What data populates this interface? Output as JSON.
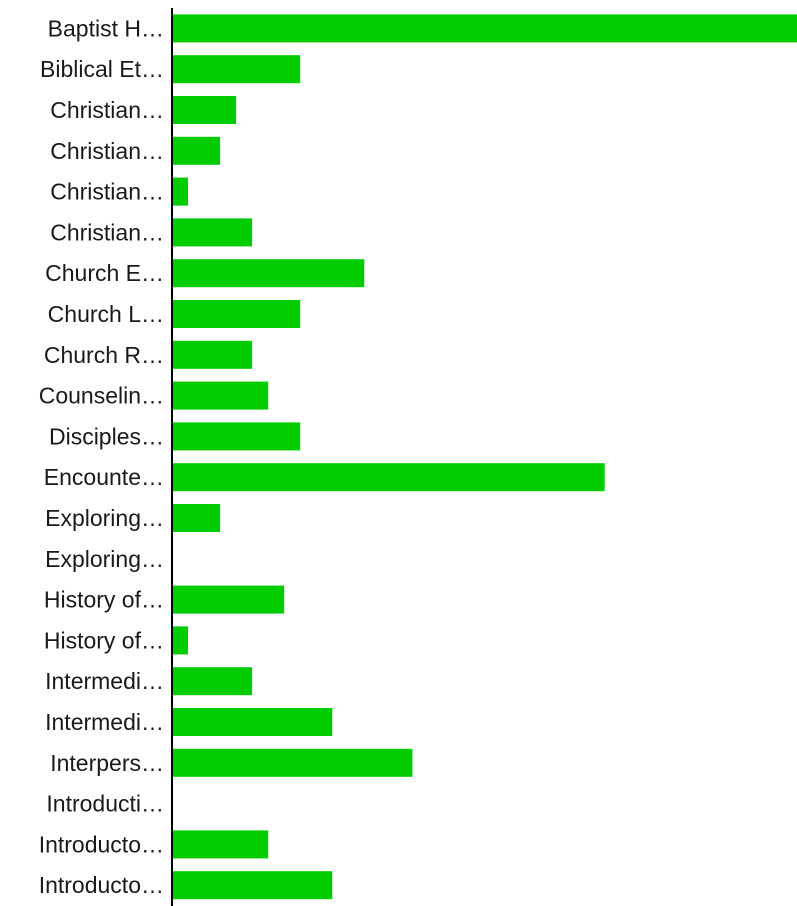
{
  "chart_data": {
    "type": "bar",
    "orientation": "horizontal",
    "title": "",
    "xlabel": "",
    "ylabel": "",
    "categories": [
      "Baptist H…",
      "Biblical Et…",
      "Christian…",
      "Christian…",
      "Christian…",
      "Christian…",
      "Church E…",
      "Church L…",
      "Church R…",
      "Counselin…",
      "Disciples…",
      "Encounte…",
      "Exploring…",
      "Exploring…",
      "History of…",
      "History of…",
      "Intermedi…",
      "Intermedi…",
      "Interpers…",
      "Introducti…",
      "Introducto…",
      "Introducto…"
    ],
    "values": [
      39,
      8,
      4,
      3,
      1,
      5,
      12,
      8,
      5,
      6,
      8,
      27,
      3,
      0,
      7,
      1,
      5,
      10,
      15,
      0,
      6,
      10
    ],
    "xlim": [
      0,
      39
    ],
    "grid": false,
    "legend": "none",
    "colors": {
      "bar": "#00cc00",
      "axis": "#000000"
    }
  }
}
